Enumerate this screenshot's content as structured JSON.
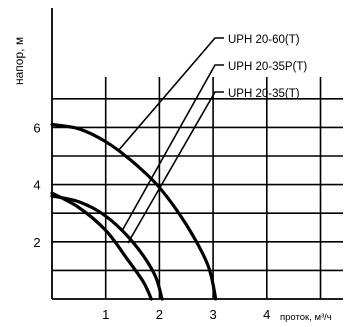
{
  "chart_data": {
    "type": "line",
    "title": "",
    "xlabel": "проток, м³/ч",
    "ylabel": "напор, м",
    "xlim": [
      0,
      5.4
    ],
    "ylim": [
      0,
      7.8
    ],
    "x_ticks": [
      1,
      2,
      3,
      4
    ],
    "y_ticks": [
      2,
      4,
      6
    ],
    "grid": true,
    "series": [
      {
        "name": "UPH 20-60(T)",
        "color": "#000000",
        "x": [
          0,
          0.5,
          1.0,
          1.5,
          2.0,
          2.5,
          2.9,
          3.05
        ],
        "y": [
          6.1,
          5.95,
          5.5,
          4.8,
          3.9,
          2.6,
          1.2,
          0
        ]
      },
      {
        "name": "UPH 20-35P(T)",
        "color": "#000000",
        "x": [
          0,
          0.5,
          1.0,
          1.5,
          1.9,
          2.05
        ],
        "y": [
          3.6,
          3.4,
          2.9,
          2.0,
          0.9,
          0
        ]
      },
      {
        "name": "UPH 20-35(T)",
        "color": "#000000",
        "x": [
          0,
          0.5,
          1.0,
          1.4,
          1.7,
          1.85
        ],
        "y": [
          3.7,
          3.2,
          2.4,
          1.4,
          0.6,
          0
        ]
      }
    ]
  }
}
